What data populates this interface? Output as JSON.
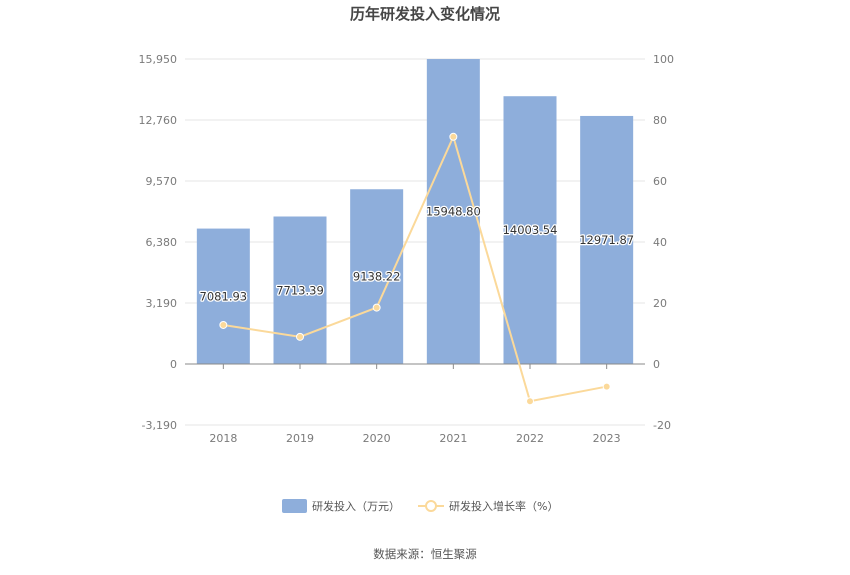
{
  "chart_data": {
    "type": "bar",
    "title": "历年研发投入变化情况",
    "categories": [
      "2018",
      "2019",
      "2020",
      "2021",
      "2022",
      "2023"
    ],
    "series": [
      {
        "name": "研发投入（万元）",
        "type": "bar",
        "axis": "left",
        "color": "#8eaedb",
        "values": [
          7081.93,
          7713.39,
          9138.22,
          15948.8,
          14003.54,
          12971.87
        ],
        "labels": [
          "7081.93",
          "7713.39",
          "9138.22",
          "15948.80",
          "14003.54",
          "12971.87"
        ]
      },
      {
        "name": "研发投入增长率（%）",
        "type": "line",
        "axis": "right",
        "color": "#fbd99a",
        "values": [
          12.8,
          8.9,
          18.5,
          74.5,
          -12.2,
          -7.4
        ]
      }
    ],
    "left_axis": {
      "ylim": [
        -3190,
        15950
      ],
      "ticks": [
        15950,
        12760,
        9570,
        6380,
        3190,
        0,
        -3190
      ],
      "tick_labels": [
        "15,950",
        "12,760",
        "9,570",
        "6,380",
        "3,190",
        "0",
        "-3,190"
      ]
    },
    "right_axis": {
      "ylim": [
        -20,
        100
      ],
      "ticks": [
        100,
        80,
        60,
        40,
        20,
        0,
        -20
      ],
      "tick_labels": [
        "100",
        "80",
        "60",
        "40",
        "20",
        "0",
        "-20"
      ]
    },
    "grid": true,
    "legend_position": "bottom-center"
  },
  "source": "数据来源：恒生聚源"
}
